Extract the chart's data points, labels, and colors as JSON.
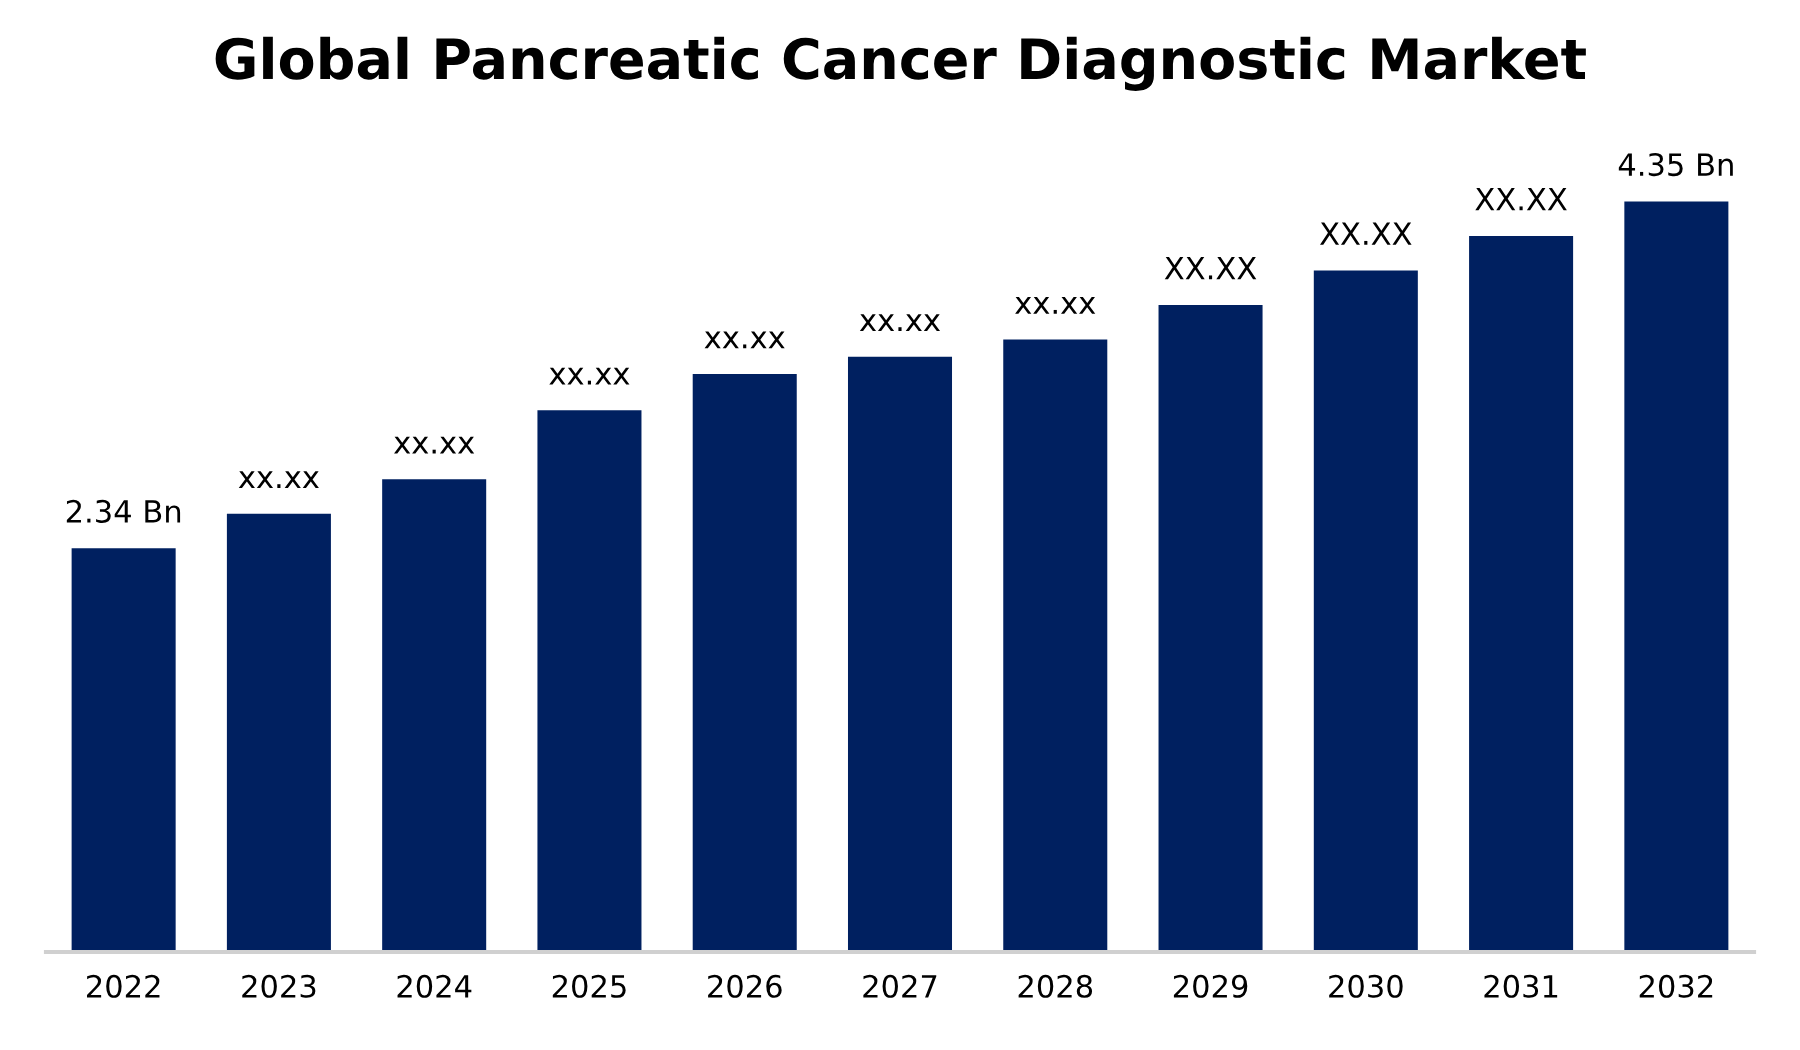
{
  "chart_data": {
    "type": "bar",
    "title": "Global Pancreatic Cancer Diagnostic Market",
    "categories": [
      "2022",
      "2023",
      "2024",
      "2025",
      "2026",
      "2027",
      "2028",
      "2029",
      "2030",
      "2031",
      "2032"
    ],
    "values": [
      2.34,
      2.54,
      2.74,
      3.14,
      3.35,
      3.45,
      3.55,
      3.75,
      3.95,
      4.15,
      4.35
    ],
    "value_labels": [
      "2.34 Bn",
      "xx.xx",
      "xx.xx",
      "xx.xx",
      "xx.xx",
      "xx.xx",
      "xx.xx",
      "XX.XX",
      "XX.XX",
      "XX.XX",
      "4.35 Bn"
    ],
    "tick_labels": "x",
    "color": "#002060",
    "grid": false,
    "legend": false
  }
}
